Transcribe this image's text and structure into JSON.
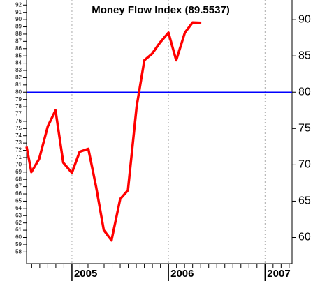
{
  "chart_data": {
    "type": "line",
    "title": "Money Flow Index (89.5537)",
    "x": [
      2004.53,
      2004.58,
      2004.66,
      2004.75,
      2004.83,
      2004.91,
      2005.0,
      2005.08,
      2005.17,
      2005.25,
      2005.33,
      2005.41,
      2005.5,
      2005.58,
      2005.67,
      2005.75,
      2005.83,
      2005.91,
      2006.0,
      2006.08,
      2006.17,
      2006.25,
      2006.34
    ],
    "series": [
      {
        "color": "#ff0000",
        "values": [
          72.5,
          69,
          70.8,
          75.3,
          77.5,
          70.3,
          68.9,
          71.8,
          72.2,
          67,
          61,
          59.6,
          65.3,
          66.5,
          78,
          84.4,
          85.3,
          86.8,
          88.2,
          84.4,
          88.2,
          89.6,
          89.55
        ]
      }
    ],
    "reference_line": {
      "value": 80,
      "color": "#0000ff"
    },
    "xlim": [
      2004.53,
      2007.28
    ],
    "xticks": [
      2005,
      2006,
      2007
    ],
    "ylim": [
      56.4,
      92.7
    ],
    "yticks": [
      58,
      59,
      60,
      61,
      62,
      63,
      64,
      65,
      66,
      67,
      68,
      69,
      70,
      71,
      72,
      73,
      74,
      75,
      76,
      77,
      78,
      79,
      80,
      81,
      82,
      83,
      84,
      85,
      86,
      87,
      88,
      89,
      90,
      91,
      92
    ],
    "y2lim": [
      56.4,
      92.7
    ],
    "y2ticks": [
      60,
      65,
      70,
      75,
      80,
      85,
      90
    ],
    "grid": true
  }
}
